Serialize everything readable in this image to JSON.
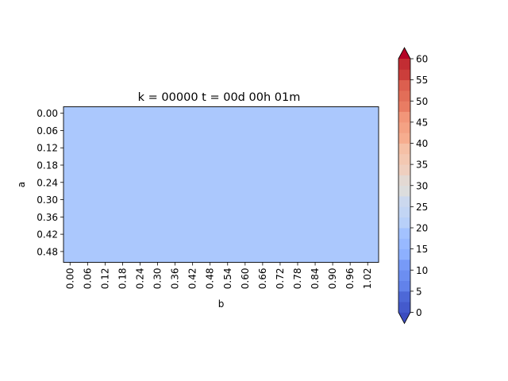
{
  "chart_data": {
    "type": "heatmap",
    "title": "k = 00000 t = 00d 00h 01m",
    "xlabel": "b",
    "ylabel": "a",
    "x_ticks": [
      "0.00",
      "0.06",
      "0.12",
      "0.18",
      "0.24",
      "0.30",
      "0.36",
      "0.42",
      "0.48",
      "0.54",
      "0.60",
      "0.66",
      "0.72",
      "0.78",
      "0.84",
      "0.90",
      "0.96",
      "1.02"
    ],
    "y_ticks": [
      "0.00",
      "0.06",
      "0.12",
      "0.18",
      "0.24",
      "0.30",
      "0.36",
      "0.42",
      "0.48"
    ],
    "xlim": [
      -0.0225,
      1.0575
    ],
    "ylim": [
      0.5175,
      -0.0225
    ],
    "field_value": 20,
    "field_color": "#abc8fd",
    "colorbar": {
      "min": 0,
      "max": 60,
      "step": 2.5,
      "extend": "both",
      "colormap": "coolwarm",
      "ticks": [
        "0",
        "5",
        "10",
        "15",
        "20",
        "25",
        "30",
        "35",
        "40",
        "45",
        "50",
        "55",
        "60"
      ],
      "colors": [
        "#3b4cc0",
        "#445acc",
        "#4d68d7",
        "#5775e1",
        "#6282ea",
        "#6c8ef1",
        "#779af7",
        "#82a5fb",
        "#8db0fe",
        "#98b9ff",
        "#a3c2ff",
        "#aec9fd",
        "#b8d0f9",
        "#c2d5f4",
        "#cbd8ee",
        "#d4dbe6",
        "#dcdddd",
        "#e3d9d3",
        "#ead5c9",
        "#efcfbf",
        "#f3c8b2",
        "#f5c0a6",
        "#f6b79a",
        "#f6ad8f",
        "#f4a284",
        "#f29679",
        "#ee8a6e",
        "#e97c63",
        "#e26e58",
        "#dc5f4f",
        "#d44e45",
        "#cb3e3b",
        "#c22d33",
        "#b40426"
      ]
    }
  }
}
